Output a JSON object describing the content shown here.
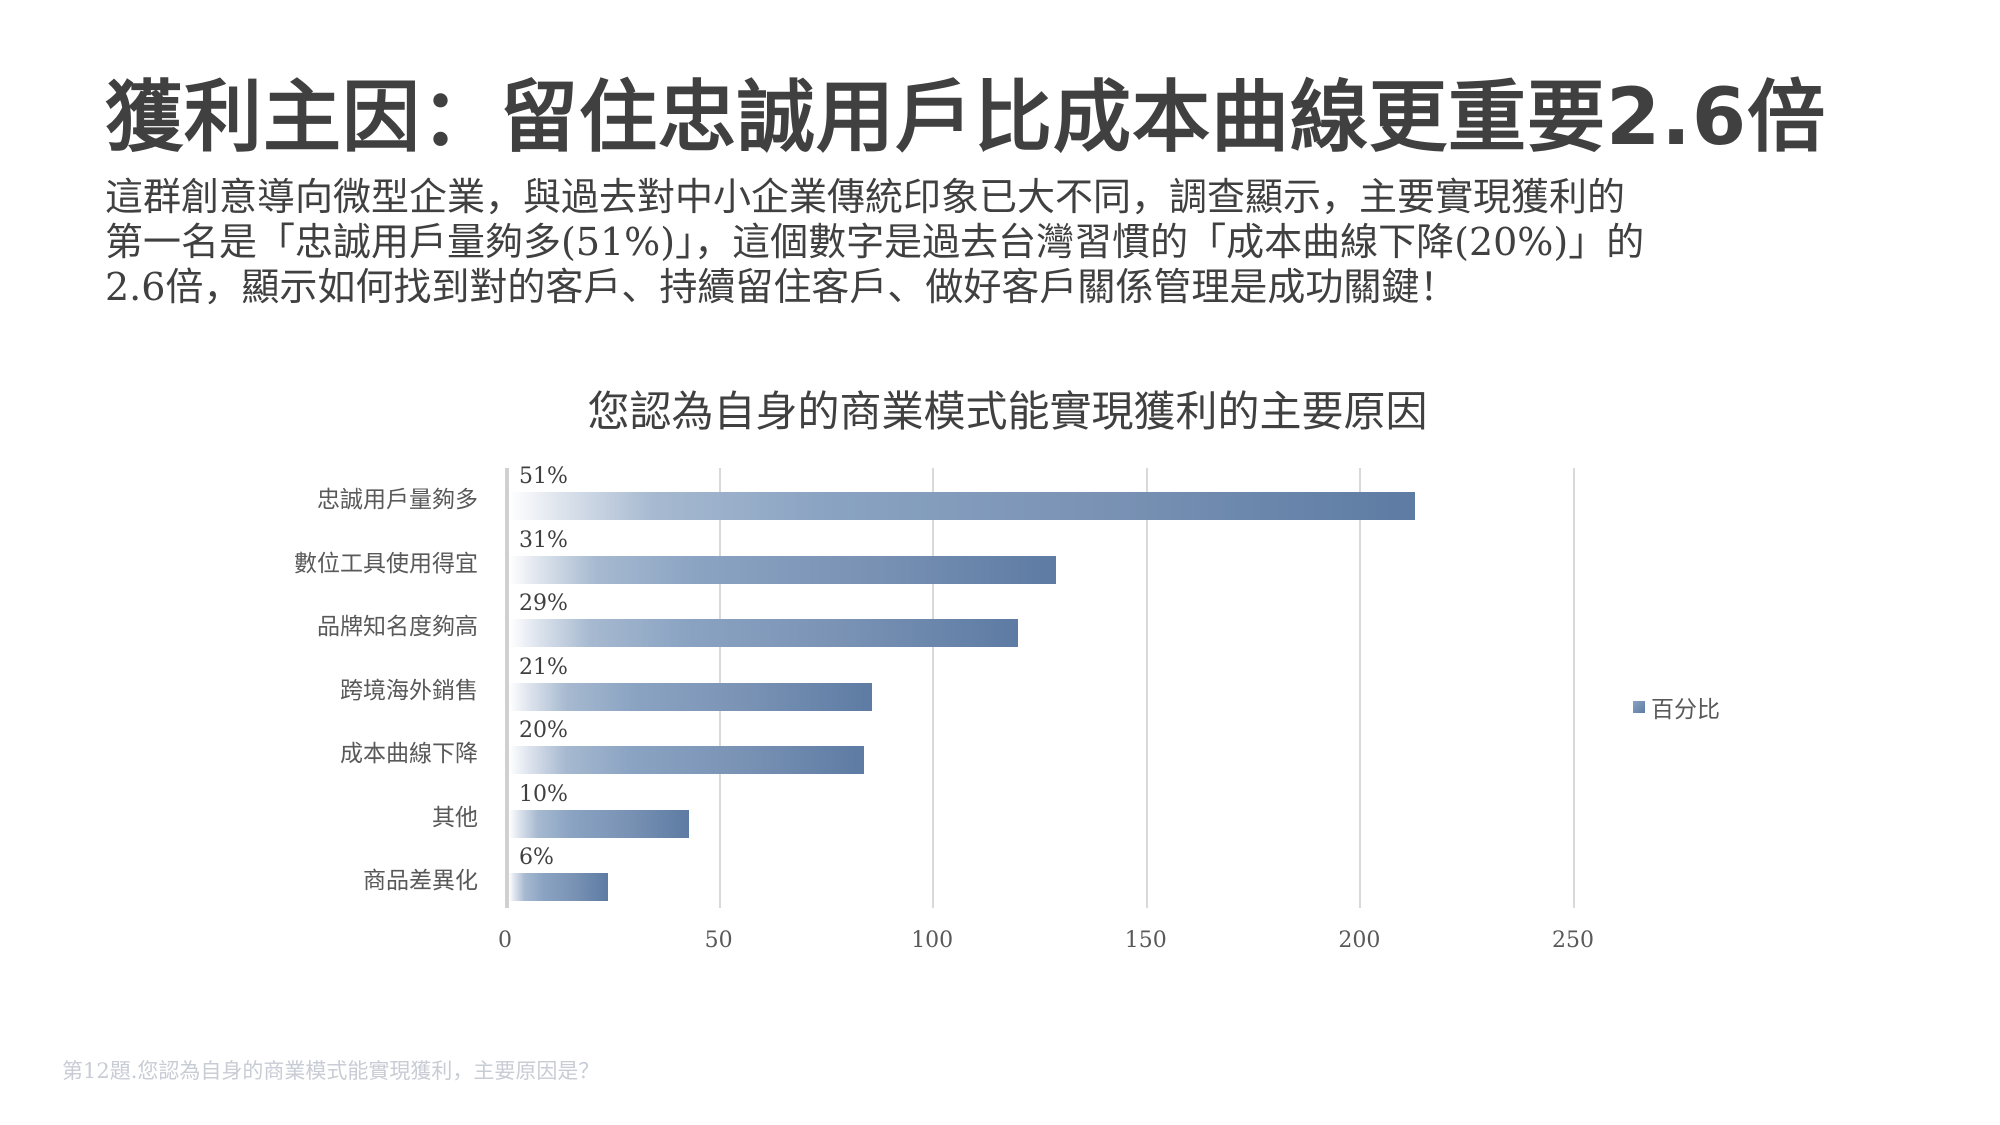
{
  "slide": {
    "title": "獲利主因：留住忠誠用戶比成本曲線更重要2.6倍",
    "description_lines": [
      "這群創意導向微型企業，與過去對中小企業傳統印象已大不同，調查顯示，主要實現獲利的",
      "第一名是「忠誠用戶量夠多(51%)」，這個數字是過去台灣習慣的「成本曲線下降(20%)」的",
      "2.6倍，顯示如何找到對的客戶、持續留住客戶、做好客戶關係管理是成功關鍵！"
    ],
    "footer": "第12題.您認為自身的商業模式能實現獲利，主要原因是？"
  },
  "chart_data": {
    "type": "bar",
    "orientation": "horizontal",
    "title": "您認為自身的商業模式能實現獲利的主要原因",
    "categories": [
      "忠誠用戶量夠多",
      "數位工具使用得宜",
      "品牌知名度夠高",
      "跨境海外銷售",
      "成本曲線下降",
      "其他",
      "商品差異化"
    ],
    "series": [
      {
        "name": "百分比",
        "values": [
          213,
          129,
          120,
          86,
          84,
          43,
          24
        ],
        "data_labels": [
          "51%",
          "31%",
          "29%",
          "21%",
          "20%",
          "10%",
          "6%"
        ]
      }
    ],
    "xlabel": "",
    "ylabel": "",
    "xlim": [
      0,
      250
    ],
    "x_ticks": [
      "0",
      "50",
      "100",
      "150",
      "200",
      "250"
    ],
    "grid": true,
    "legend_position": "right",
    "colors": {
      "bar_start": "#ffffff",
      "bar_end": "#5d7ba3"
    }
  }
}
